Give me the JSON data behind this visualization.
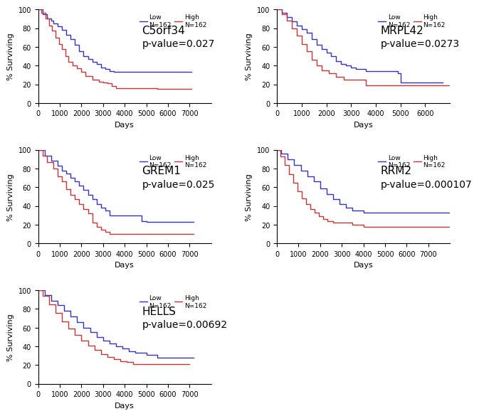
{
  "panels": [
    {
      "title": "C5orf34",
      "pvalue": "p-value=0.027",
      "xlim": [
        0,
        8000
      ],
      "xticks": [
        0,
        1000,
        2000,
        3000,
        4000,
        5000,
        6000,
        7000
      ],
      "ylim": [
        0,
        100
      ],
      "yticks": [
        0,
        20,
        40,
        60,
        80,
        100
      ],
      "low_x": [
        0,
        200,
        400,
        600,
        700,
        900,
        1100,
        1300,
        1500,
        1700,
        1900,
        2100,
        2300,
        2500,
        2700,
        2900,
        3100,
        3300,
        3500,
        4000,
        4500,
        5000,
        5500,
        6000,
        6500,
        7100
      ],
      "low_y": [
        100,
        95,
        90,
        88,
        85,
        82,
        78,
        73,
        68,
        62,
        55,
        50,
        47,
        44,
        42,
        38,
        36,
        34,
        33,
        33,
        33,
        33,
        33,
        33,
        33,
        33
      ],
      "high_x": [
        0,
        150,
        350,
        500,
        650,
        800,
        950,
        1100,
        1250,
        1400,
        1600,
        1800,
        2000,
        2200,
        2500,
        2800,
        3000,
        3200,
        3400,
        3600,
        5000,
        5500,
        7100
      ],
      "high_y": [
        100,
        96,
        90,
        83,
        77,
        70,
        63,
        58,
        50,
        44,
        40,
        37,
        33,
        29,
        25,
        23,
        22,
        21,
        18,
        16,
        16,
        15,
        15
      ]
    },
    {
      "title": "MRPL42",
      "pvalue": "p-value=0.0273",
      "xlim": [
        0,
        7000
      ],
      "xticks": [
        0,
        1000,
        2000,
        3000,
        4000,
        5000,
        6000
      ],
      "ylim": [
        0,
        100
      ],
      "yticks": [
        0,
        20,
        40,
        60,
        80,
        100
      ],
      "low_x": [
        0,
        200,
        400,
        600,
        800,
        1000,
        1200,
        1400,
        1600,
        1800,
        2000,
        2200,
        2400,
        2600,
        2800,
        3000,
        3200,
        3600,
        4900,
        5000,
        5500,
        6700
      ],
      "low_y": [
        100,
        96,
        92,
        87,
        83,
        79,
        75,
        68,
        62,
        58,
        54,
        50,
        45,
        42,
        40,
        38,
        36,
        34,
        32,
        22,
        22,
        22
      ],
      "high_x": [
        0,
        200,
        400,
        600,
        800,
        1000,
        1200,
        1400,
        1600,
        1800,
        2100,
        2400,
        2700,
        3600,
        7000
      ],
      "high_y": [
        100,
        95,
        88,
        80,
        72,
        63,
        55,
        46,
        40,
        35,
        32,
        28,
        25,
        19,
        19
      ]
    },
    {
      "title": "GREM1",
      "pvalue": "p-value=0.025",
      "xlim": [
        0,
        8000
      ],
      "xticks": [
        0,
        1000,
        2000,
        3000,
        4000,
        5000,
        6000,
        7000
      ],
      "ylim": [
        0,
        100
      ],
      "yticks": [
        0,
        20,
        40,
        60,
        80,
        100
      ],
      "low_x": [
        0,
        300,
        600,
        900,
        1100,
        1300,
        1500,
        1700,
        1900,
        2100,
        2300,
        2500,
        2700,
        2900,
        3100,
        3300,
        3700,
        4800,
        5000,
        5200,
        7200
      ],
      "low_y": [
        100,
        94,
        88,
        83,
        78,
        75,
        70,
        66,
        62,
        57,
        52,
        47,
        42,
        38,
        35,
        30,
        30,
        24,
        23,
        23,
        23
      ],
      "high_x": [
        0,
        200,
        400,
        700,
        900,
        1100,
        1300,
        1500,
        1700,
        1900,
        2100,
        2300,
        2500,
        2700,
        2900,
        3100,
        3300,
        7200
      ],
      "high_y": [
        100,
        94,
        87,
        80,
        72,
        66,
        58,
        52,
        47,
        42,
        37,
        32,
        22,
        18,
        15,
        12,
        10,
        10
      ]
    },
    {
      "title": "RRM2",
      "pvalue": "p-value=0.000107",
      "xlim": [
        0,
        8000
      ],
      "xticks": [
        0,
        1000,
        2000,
        3000,
        4000,
        5000,
        6000,
        7000
      ],
      "ylim": [
        0,
        100
      ],
      "yticks": [
        0,
        20,
        40,
        60,
        80,
        100
      ],
      "low_x": [
        0,
        200,
        500,
        800,
        1100,
        1400,
        1700,
        2000,
        2300,
        2600,
        2900,
        3200,
        3500,
        4000,
        5000,
        6000,
        7000,
        8000
      ],
      "low_y": [
        100,
        96,
        90,
        84,
        78,
        72,
        66,
        59,
        53,
        47,
        42,
        38,
        35,
        33,
        33,
        33,
        33,
        33
      ],
      "high_x": [
        0,
        150,
        350,
        550,
        750,
        950,
        1150,
        1350,
        1550,
        1750,
        1950,
        2150,
        2350,
        2600,
        3000,
        3500,
        4000,
        5000,
        8000
      ],
      "high_y": [
        100,
        93,
        84,
        74,
        65,
        56,
        48,
        42,
        37,
        33,
        29,
        26,
        24,
        22,
        22,
        20,
        18,
        18,
        18
      ]
    },
    {
      "title": "HELLS",
      "pvalue": "p-value=0.00692",
      "xlim": [
        0,
        8000
      ],
      "xticks": [
        0,
        1000,
        2000,
        3000,
        4000,
        5000,
        6000,
        7000
      ],
      "ylim": [
        0,
        100
      ],
      "yticks": [
        0,
        20,
        40,
        60,
        80,
        100
      ],
      "low_x": [
        0,
        300,
        600,
        900,
        1200,
        1500,
        1800,
        2100,
        2400,
        2700,
        3000,
        3300,
        3600,
        3900,
        4200,
        4500,
        5000,
        5500,
        7200
      ],
      "low_y": [
        100,
        95,
        89,
        84,
        78,
        72,
        66,
        60,
        55,
        50,
        46,
        43,
        40,
        38,
        35,
        33,
        31,
        28,
        28
      ],
      "high_x": [
        0,
        200,
        500,
        800,
        1100,
        1400,
        1700,
        2000,
        2300,
        2600,
        2900,
        3200,
        3500,
        3800,
        4100,
        4400,
        5000,
        7000
      ],
      "high_y": [
        100,
        94,
        85,
        76,
        67,
        59,
        52,
        46,
        41,
        36,
        32,
        29,
        26,
        24,
        23,
        21,
        21,
        21
      ]
    }
  ],
  "low_color": "#3333cc",
  "high_color": "#cc3333",
  "low_label": "Low\nN=162",
  "high_label": "High\nN=162",
  "ylabel": "% Surviving",
  "xlabel": "Days",
  "legend_fontsize": 6.5,
  "tick_fontsize": 7,
  "label_fontsize": 8,
  "title_fontsize": 11,
  "pvalue_fontsize": 10
}
